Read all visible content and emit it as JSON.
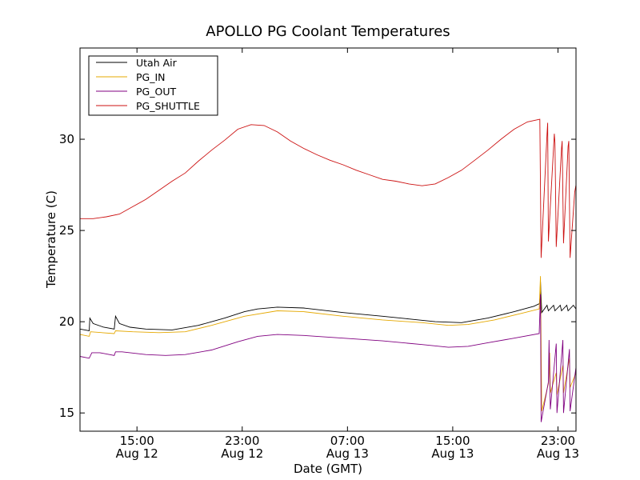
{
  "chart_data": {
    "type": "line",
    "title": "APOLLO PG Coolant Temperatures",
    "xlabel": "Date (GMT)",
    "ylabel": "Temperature (C)",
    "x_unit": "hours since Aug 12 10:40 GMT",
    "xlim": [
      0,
      37.7
    ],
    "ylim": [
      14,
      35
    ],
    "yticks": [
      15,
      20,
      25,
      30
    ],
    "xticks": [
      {
        "x": 4.33,
        "line1": "15:00",
        "line2": "Aug 12"
      },
      {
        "x": 12.33,
        "line1": "23:00",
        "line2": "Aug 12"
      },
      {
        "x": 20.33,
        "line1": "07:00",
        "line2": "Aug 13"
      },
      {
        "x": 28.33,
        "line1": "15:00",
        "line2": "Aug 13"
      },
      {
        "x": 36.33,
        "line1": "23:00",
        "line2": "Aug 13"
      }
    ],
    "legend_position": "top-left",
    "series": [
      {
        "name": "Utah Air",
        "color": "#000000",
        "points": [
          [
            0,
            19.6
          ],
          [
            0.7,
            19.5
          ],
          [
            0.75,
            20.2
          ],
          [
            1.0,
            19.9
          ],
          [
            1.8,
            19.7
          ],
          [
            2.6,
            19.6
          ],
          [
            2.7,
            20.3
          ],
          [
            3.0,
            19.9
          ],
          [
            3.8,
            19.7
          ],
          [
            5,
            19.6
          ],
          [
            7,
            19.55
          ],
          [
            9,
            19.8
          ],
          [
            11,
            20.2
          ],
          [
            12.5,
            20.55
          ],
          [
            13.5,
            20.7
          ],
          [
            15,
            20.8
          ],
          [
            17,
            20.75
          ],
          [
            20,
            20.5
          ],
          [
            23,
            20.3
          ],
          [
            25,
            20.15
          ],
          [
            27,
            20.0
          ],
          [
            29,
            19.95
          ],
          [
            31,
            20.2
          ],
          [
            33,
            20.55
          ],
          [
            34.5,
            20.85
          ],
          [
            34.95,
            21.0
          ],
          [
            35.0,
            22.2
          ],
          [
            35.1,
            20.5
          ],
          [
            35.5,
            20.9
          ],
          [
            35.6,
            20.6
          ],
          [
            36.0,
            20.9
          ],
          [
            36.1,
            20.6
          ],
          [
            36.5,
            20.9
          ],
          [
            36.6,
            20.6
          ],
          [
            37.0,
            20.9
          ],
          [
            37.1,
            20.6
          ],
          [
            37.5,
            20.9
          ],
          [
            37.7,
            20.7
          ]
        ]
      },
      {
        "name": "PG_IN",
        "color": "#e5a800",
        "points": [
          [
            0,
            19.3
          ],
          [
            0.7,
            19.2
          ],
          [
            0.8,
            19.45
          ],
          [
            2.6,
            19.35
          ],
          [
            2.7,
            19.5
          ],
          [
            4,
            19.45
          ],
          [
            6,
            19.4
          ],
          [
            8,
            19.45
          ],
          [
            10,
            19.8
          ],
          [
            12.5,
            20.3
          ],
          [
            15,
            20.6
          ],
          [
            17,
            20.55
          ],
          [
            20,
            20.3
          ],
          [
            23,
            20.1
          ],
          [
            26,
            19.95
          ],
          [
            28,
            19.8
          ],
          [
            29.5,
            19.85
          ],
          [
            31.5,
            20.1
          ],
          [
            33.5,
            20.45
          ],
          [
            34.9,
            20.7
          ],
          [
            35.0,
            22.5
          ],
          [
            35.1,
            15.1
          ],
          [
            35.6,
            16.6
          ],
          [
            35.7,
            18.3
          ],
          [
            35.75,
            16.1
          ],
          [
            36.2,
            17.2
          ],
          [
            36.25,
            16.0
          ],
          [
            36.7,
            17.6
          ],
          [
            36.75,
            16.1
          ],
          [
            37.2,
            18.0
          ],
          [
            37.25,
            16.4
          ],
          [
            37.7,
            17.2
          ]
        ]
      },
      {
        "name": "PG_OUT",
        "color": "#800080",
        "points": [
          [
            0,
            18.1
          ],
          [
            0.7,
            18.0
          ],
          [
            0.9,
            18.3
          ],
          [
            1.5,
            18.3
          ],
          [
            2.6,
            18.15
          ],
          [
            2.7,
            18.35
          ],
          [
            3.2,
            18.35
          ],
          [
            5,
            18.2
          ],
          [
            6.5,
            18.15
          ],
          [
            8,
            18.2
          ],
          [
            10,
            18.45
          ],
          [
            12,
            18.9
          ],
          [
            13.5,
            19.2
          ],
          [
            15,
            19.3
          ],
          [
            17,
            19.25
          ],
          [
            20,
            19.1
          ],
          [
            23,
            18.95
          ],
          [
            26,
            18.75
          ],
          [
            28,
            18.6
          ],
          [
            29.5,
            18.65
          ],
          [
            31,
            18.85
          ],
          [
            33,
            19.1
          ],
          [
            34.9,
            19.35
          ],
          [
            35.0,
            21.5
          ],
          [
            35.05,
            14.5
          ],
          [
            35.6,
            16.7
          ],
          [
            35.65,
            19.0
          ],
          [
            35.75,
            15.2
          ],
          [
            36.2,
            18.8
          ],
          [
            36.25,
            15.0
          ],
          [
            36.7,
            19.0
          ],
          [
            36.75,
            15.0
          ],
          [
            37.2,
            18.5
          ],
          [
            37.25,
            15.1
          ],
          [
            37.7,
            17.5
          ]
        ]
      },
      {
        "name": "PG_SHUTTLE",
        "color": "#cc1111",
        "points": [
          [
            0,
            25.65
          ],
          [
            1,
            25.65
          ],
          [
            2,
            25.75
          ],
          [
            3,
            25.9
          ],
          [
            4,
            26.3
          ],
          [
            5,
            26.7
          ],
          [
            6,
            27.2
          ],
          [
            7,
            27.7
          ],
          [
            8,
            28.15
          ],
          [
            9,
            28.8
          ],
          [
            10,
            29.4
          ],
          [
            11,
            29.95
          ],
          [
            12,
            30.55
          ],
          [
            13,
            30.8
          ],
          [
            14,
            30.75
          ],
          [
            15,
            30.4
          ],
          [
            16,
            29.9
          ],
          [
            17,
            29.5
          ],
          [
            18,
            29.15
          ],
          [
            19,
            28.85
          ],
          [
            20,
            28.6
          ],
          [
            21,
            28.3
          ],
          [
            22,
            28.05
          ],
          [
            23,
            27.8
          ],
          [
            24,
            27.7
          ],
          [
            25,
            27.55
          ],
          [
            26,
            27.45
          ],
          [
            27,
            27.55
          ],
          [
            28,
            27.9
          ],
          [
            29,
            28.3
          ],
          [
            30,
            28.85
          ],
          [
            31,
            29.4
          ],
          [
            32,
            30.0
          ],
          [
            33,
            30.55
          ],
          [
            34,
            30.95
          ],
          [
            34.95,
            31.1
          ],
          [
            35.05,
            23.5
          ],
          [
            35.5,
            30.3
          ],
          [
            35.55,
            30.9
          ],
          [
            35.6,
            24.4
          ],
          [
            36.05,
            30.3
          ],
          [
            36.1,
            29.8
          ],
          [
            36.2,
            24.1
          ],
          [
            36.6,
            29.5
          ],
          [
            36.65,
            29.9
          ],
          [
            36.75,
            24.3
          ],
          [
            37.1,
            29.6
          ],
          [
            37.15,
            29.9
          ],
          [
            37.25,
            23.5
          ],
          [
            37.6,
            27.1
          ],
          [
            37.7,
            27.5
          ]
        ]
      }
    ]
  }
}
